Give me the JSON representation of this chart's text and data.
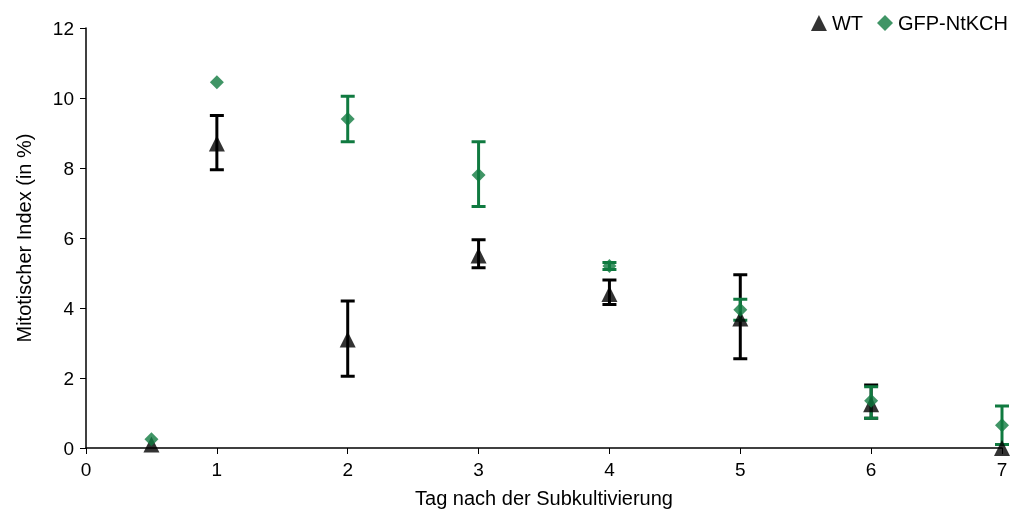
{
  "chart_data": {
    "type": "scatter",
    "xlabel": "Tag nach der Subkultivierung",
    "ylabel": "Mitotischer Index (in %)",
    "x": [
      0.5,
      1,
      2,
      3,
      4,
      5,
      6,
      7
    ],
    "series": [
      {
        "name": "WT",
        "color": "#000000",
        "marker": "triangle",
        "values": [
          0.1,
          8.7,
          3.1,
          5.5,
          4.4,
          3.7,
          1.25,
          0
        ],
        "errors": [
          null,
          [
            7.95,
            9.5
          ],
          [
            2.05,
            4.2
          ],
          [
            5.15,
            5.95
          ],
          [
            4.1,
            4.8
          ],
          [
            2.55,
            4.95
          ],
          [
            0.85,
            1.8
          ],
          null
        ]
      },
      {
        "name": "GFP-NtKCH",
        "color": "#107a40",
        "marker": "diamond",
        "values": [
          0.25,
          10.45,
          9.4,
          7.8,
          5.2,
          3.95,
          1.35,
          0.65
        ],
        "errors": [
          null,
          null,
          [
            8.75,
            10.05
          ],
          [
            6.9,
            8.75
          ],
          [
            5.1,
            5.3
          ],
          [
            3.65,
            4.25
          ],
          [
            0.85,
            1.75
          ],
          [
            0.1,
            1.2
          ]
        ]
      }
    ],
    "xlim": [
      0,
      7
    ],
    "xticks": [
      0,
      1,
      2,
      3,
      4,
      5,
      6,
      7
    ],
    "ylim": [
      0,
      12
    ],
    "yticks": [
      0,
      2,
      4,
      6,
      8,
      10,
      12
    ],
    "grid": false,
    "legend": "top right"
  }
}
